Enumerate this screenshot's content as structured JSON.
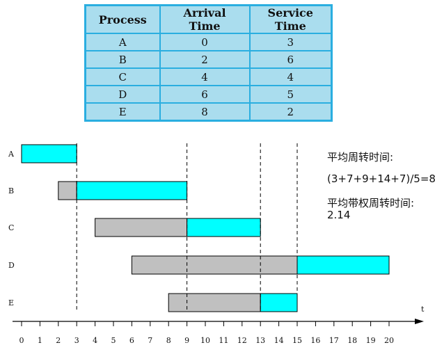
{
  "table": {
    "headers": [
      "Process",
      "Arrival Time",
      "Service Time"
    ],
    "rows": [
      [
        "A",
        "0",
        "3"
      ],
      [
        "B",
        "2",
        "6"
      ],
      [
        "C",
        "4",
        "4"
      ],
      [
        "D",
        "6",
        "5"
      ],
      [
        "E",
        "8",
        "2"
      ]
    ]
  },
  "chart_data": {
    "type": "gantt",
    "xlabel": "t",
    "xticks": [
      0,
      1,
      2,
      3,
      4,
      5,
      6,
      7,
      8,
      9,
      10,
      11,
      12,
      13,
      14,
      15,
      16,
      17,
      18,
      19,
      20
    ],
    "xlim": [
      0,
      20
    ],
    "rows": [
      "A",
      "B",
      "C",
      "D",
      "E"
    ],
    "bars": [
      {
        "row": "A",
        "state": "running",
        "start": 0,
        "end": 3
      },
      {
        "row": "B",
        "state": "waiting",
        "start": 2,
        "end": 3
      },
      {
        "row": "B",
        "state": "running",
        "start": 3,
        "end": 9
      },
      {
        "row": "C",
        "state": "waiting",
        "start": 4,
        "end": 9
      },
      {
        "row": "C",
        "state": "running",
        "start": 9,
        "end": 13
      },
      {
        "row": "D",
        "state": "waiting",
        "start": 6,
        "end": 15
      },
      {
        "row": "D",
        "state": "running",
        "start": 15,
        "end": 20
      },
      {
        "row": "E",
        "state": "waiting",
        "start": 8,
        "end": 13
      },
      {
        "row": "E",
        "state": "running",
        "start": 13,
        "end": 15
      }
    ],
    "dashed_lines": [
      3,
      9,
      13,
      15
    ],
    "colors": {
      "running": "#00ffff",
      "waiting": "#c0c0c0"
    }
  },
  "notes": {
    "avg_turnaround_label": "平均周转时间:",
    "avg_turnaround_value": "(3+7+9+14+7)/5=8",
    "avg_weighted_label": "平均带权周转时间:",
    "avg_weighted_value": "2.14"
  }
}
